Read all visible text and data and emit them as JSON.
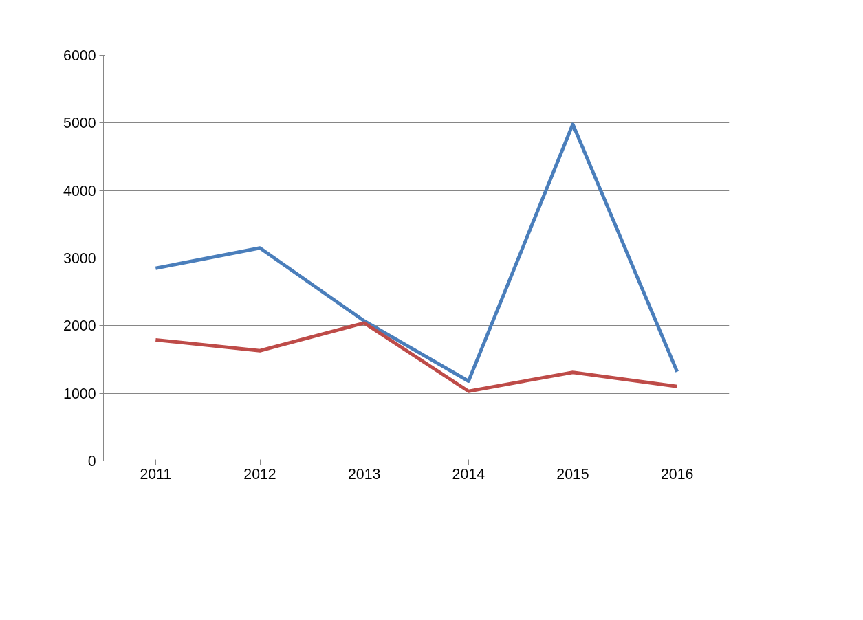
{
  "chart_data": {
    "type": "line",
    "categories": [
      "2011",
      "2012",
      "2013",
      "2014",
      "2015",
      "2016"
    ],
    "series": [
      {
        "color": "#4a7ebb",
        "values": [
          2850,
          3150,
          2070,
          1180,
          4980,
          1320
        ]
      },
      {
        "color": "#be4b48",
        "values": [
          1790,
          1630,
          2040,
          1030,
          1310,
          1100
        ]
      }
    ],
    "ylim": [
      0,
      6000
    ],
    "yticks": [
      0,
      1000,
      2000,
      3000,
      4000,
      5000,
      6000
    ],
    "grid": "y",
    "marker": "none",
    "line_style": "solid"
  }
}
